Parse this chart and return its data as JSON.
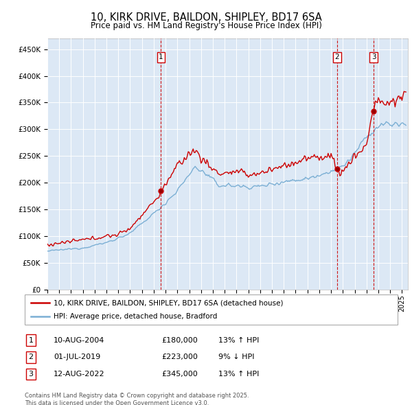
{
  "title": "10, KIRK DRIVE, BAILDON, SHIPLEY, BD17 6SA",
  "subtitle": "Price paid vs. HM Land Registry's House Price Index (HPI)",
  "ylim": [
    0,
    470000
  ],
  "xlim_start": 1995.0,
  "xlim_end": 2025.5,
  "background_color": "#dce8f5",
  "grid_color": "#ffffff",
  "legend_label_red": "10, KIRK DRIVE, BAILDON, SHIPLEY, BD17 6SA (detached house)",
  "legend_label_blue": "HPI: Average price, detached house, Bradford",
  "sale_markers": [
    {
      "num": 1,
      "date": "10-AUG-2004",
      "price": 180000,
      "hpi_pct": "13% ↑ HPI",
      "x": 2004.61
    },
    {
      "num": 2,
      "date": "01-JUL-2019",
      "price": 223000,
      "hpi_pct": "9% ↓ HPI",
      "x": 2019.5
    },
    {
      "num": 3,
      "date": "12-AUG-2022",
      "price": 345000,
      "hpi_pct": "13% ↑ HPI",
      "x": 2022.61
    }
  ],
  "footer": "Contains HM Land Registry data © Crown copyright and database right 2025.\nThis data is licensed under the Open Government Licence v3.0.",
  "red_color": "#cc0000",
  "blue_color": "#7bafd4"
}
